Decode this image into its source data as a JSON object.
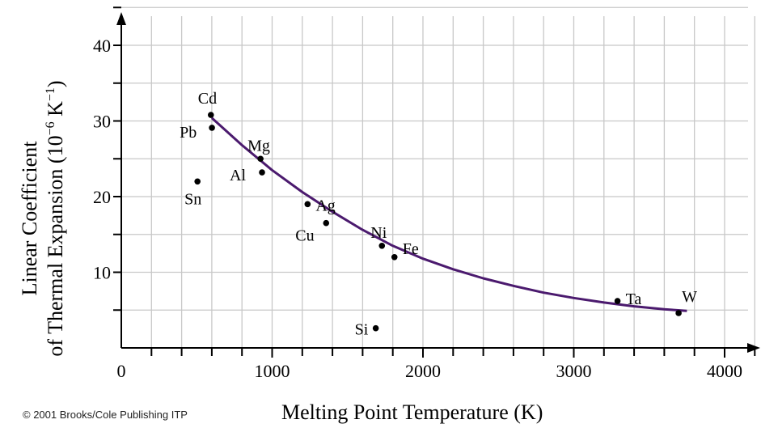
{
  "chart_data": {
    "type": "scatter",
    "xlabel": "Melting Point Temperature  (K)",
    "ylabel_line1": "Linear Coefficient",
    "ylabel_line2": "of Thermal Expansion  (10",
    "ylabel_exp": "−6",
    "ylabel_unit": " K",
    "ylabel_unit_exp": "−1",
    "ylabel_close": ")",
    "xlim": [
      0,
      4300
    ],
    "ylim": [
      0,
      45
    ],
    "grid": true,
    "x_ticks": [
      0,
      1000,
      2000,
      3000,
      4000
    ],
    "x_tick_labels": [
      "0",
      "1000",
      "2000",
      "3000",
      "4000"
    ],
    "y_ticks": [
      10,
      20,
      30,
      40
    ],
    "y_tick_labels": [
      "10",
      "20",
      "30",
      "40"
    ],
    "series": [
      {
        "points": [
          {
            "label": "Cd",
            "x": 594,
            "y": 30.8
          },
          {
            "label": "Pb",
            "x": 601,
            "y": 29.1
          },
          {
            "label": "Sn",
            "x": 505,
            "y": 22.0
          },
          {
            "label": "Mg",
            "x": 923,
            "y": 25.0
          },
          {
            "label": "Al",
            "x": 933,
            "y": 23.2
          },
          {
            "label": "Ag",
            "x": 1235,
            "y": 19.0
          },
          {
            "label": "Cu",
            "x": 1358,
            "y": 16.5
          },
          {
            "label": "Ni",
            "x": 1728,
            "y": 13.5
          },
          {
            "label": "Fe",
            "x": 1811,
            "y": 12.0
          },
          {
            "label": "Si",
            "x": 1687,
            "y": 2.6
          },
          {
            "label": "Ta",
            "x": 3290,
            "y": 6.2
          },
          {
            "label": "W",
            "x": 3695,
            "y": 4.6
          }
        ]
      }
    ],
    "trend_curve": [
      [
        600,
        30.4
      ],
      [
        800,
        26.8
      ],
      [
        1000,
        23.5
      ],
      [
        1200,
        20.6
      ],
      [
        1400,
        18.0
      ],
      [
        1600,
        15.6
      ],
      [
        1800,
        13.5
      ],
      [
        2000,
        11.8
      ],
      [
        2200,
        10.4
      ],
      [
        2400,
        9.2
      ],
      [
        2600,
        8.2
      ],
      [
        2800,
        7.3
      ],
      [
        3000,
        6.6
      ],
      [
        3200,
        6.0
      ],
      [
        3400,
        5.5
      ],
      [
        3600,
        5.1
      ],
      [
        3750,
        4.9
      ]
    ],
    "point_color": "#000000",
    "curve_color": "#4b1a6e"
  },
  "copyright": "© 2001 Brooks/Cole Publishing ITP"
}
